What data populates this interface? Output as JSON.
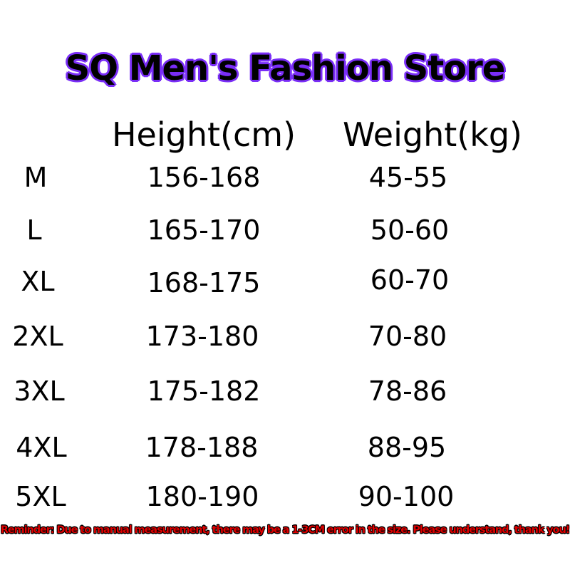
{
  "title": "SQ Men's Fashion Store",
  "colors": {
    "title_outline": "#7b2ff7",
    "reminder_text": "#e00000"
  },
  "headers": {
    "height": "Height(cm)",
    "weight": "Weight(kg)"
  },
  "rows": [
    {
      "size": "M",
      "height": "156-168",
      "weight": "45-55"
    },
    {
      "size": "L",
      "height": "165-170",
      "weight": "50-60"
    },
    {
      "size": "XL",
      "height": "168-175",
      "weight": "60-70"
    },
    {
      "size": "2XL",
      "height": "173-180",
      "weight": "70-80"
    },
    {
      "size": "3XL",
      "height": "175-182",
      "weight": "78-86"
    },
    {
      "size": "4XL",
      "height": "178-188",
      "weight": "88-95"
    },
    {
      "size": "5XL",
      "height": "180-190",
      "weight": "90-100"
    }
  ],
  "reminder": "Reminder: Due to manual measurement, there may be a 1-3CM error in the size. Please understand, thank you!"
}
